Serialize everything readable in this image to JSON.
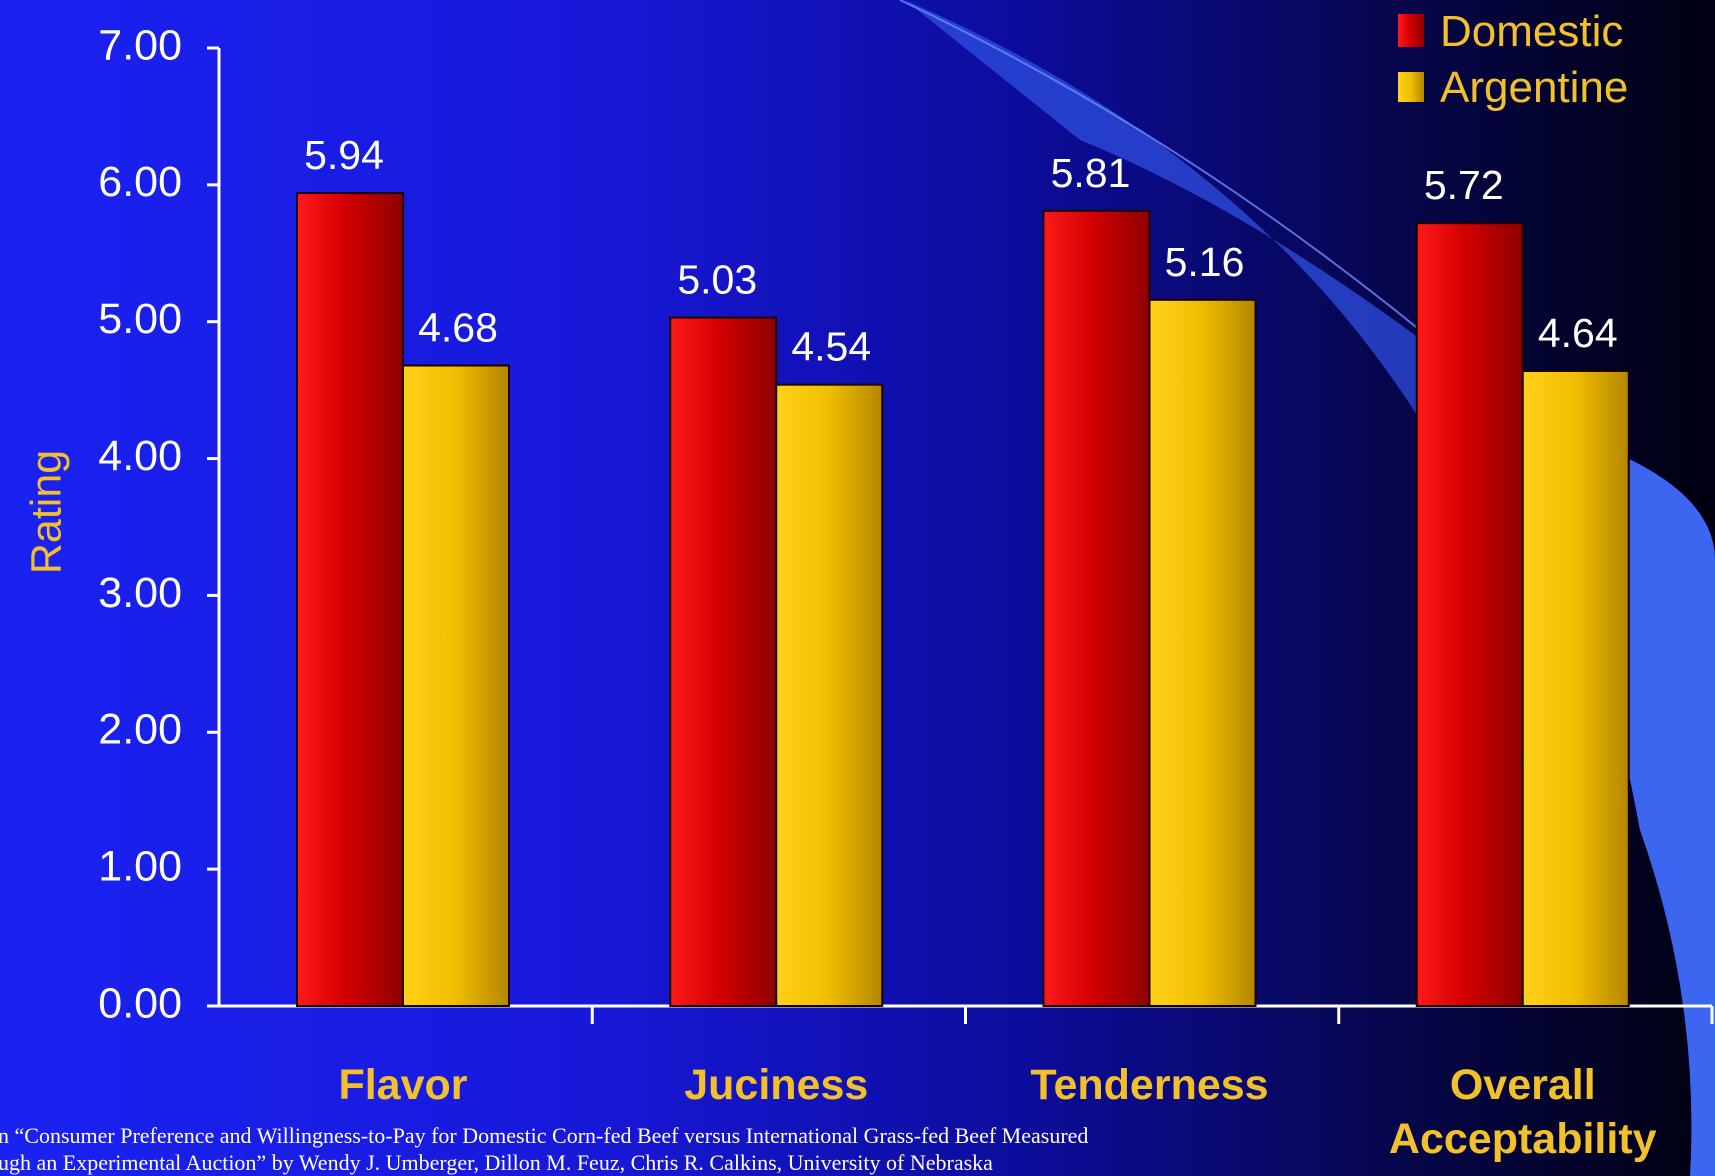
{
  "chart_data": {
    "type": "bar",
    "title": "",
    "xlabel": "",
    "ylabel": "Rating",
    "ylim": [
      0,
      7
    ],
    "yticks": [
      "0.00",
      "1.00",
      "2.00",
      "3.00",
      "4.00",
      "5.00",
      "6.00",
      "7.00"
    ],
    "categories": [
      [
        "Flavor"
      ],
      [
        "Juciness"
      ],
      [
        "Tenderness"
      ],
      [
        "Overall",
        "Acceptability"
      ]
    ],
    "series": [
      {
        "name": "Domestic",
        "values": [
          5.94,
          5.03,
          5.81,
          5.72
        ],
        "labels": [
          "5.94",
          "5.03",
          "5.81",
          "5.72"
        ],
        "color": "#e00000"
      },
      {
        "name": "Argentine",
        "values": [
          4.68,
          4.54,
          5.16,
          4.64
        ],
        "labels": [
          "4.68",
          "4.54",
          "5.16",
          "4.64"
        ],
        "color": "#f5c400"
      }
    ],
    "legend_position": "top-right",
    "grid": false
  },
  "footnote": {
    "line1": "n “Consumer Preference and Willingness-to-Pay for Domestic Corn-fed Beef versus International Grass-fed Beef Measured",
    "line2": "ugh an Experimental Auction” by Wendy J. Umberger, Dillon M. Feuz, Chris R. Calkins, University of Nebraska"
  },
  "colors": {
    "axis": "#ffffff",
    "label_gold": "#f2c02a",
    "accent_swoosh": "#3c66f0"
  }
}
